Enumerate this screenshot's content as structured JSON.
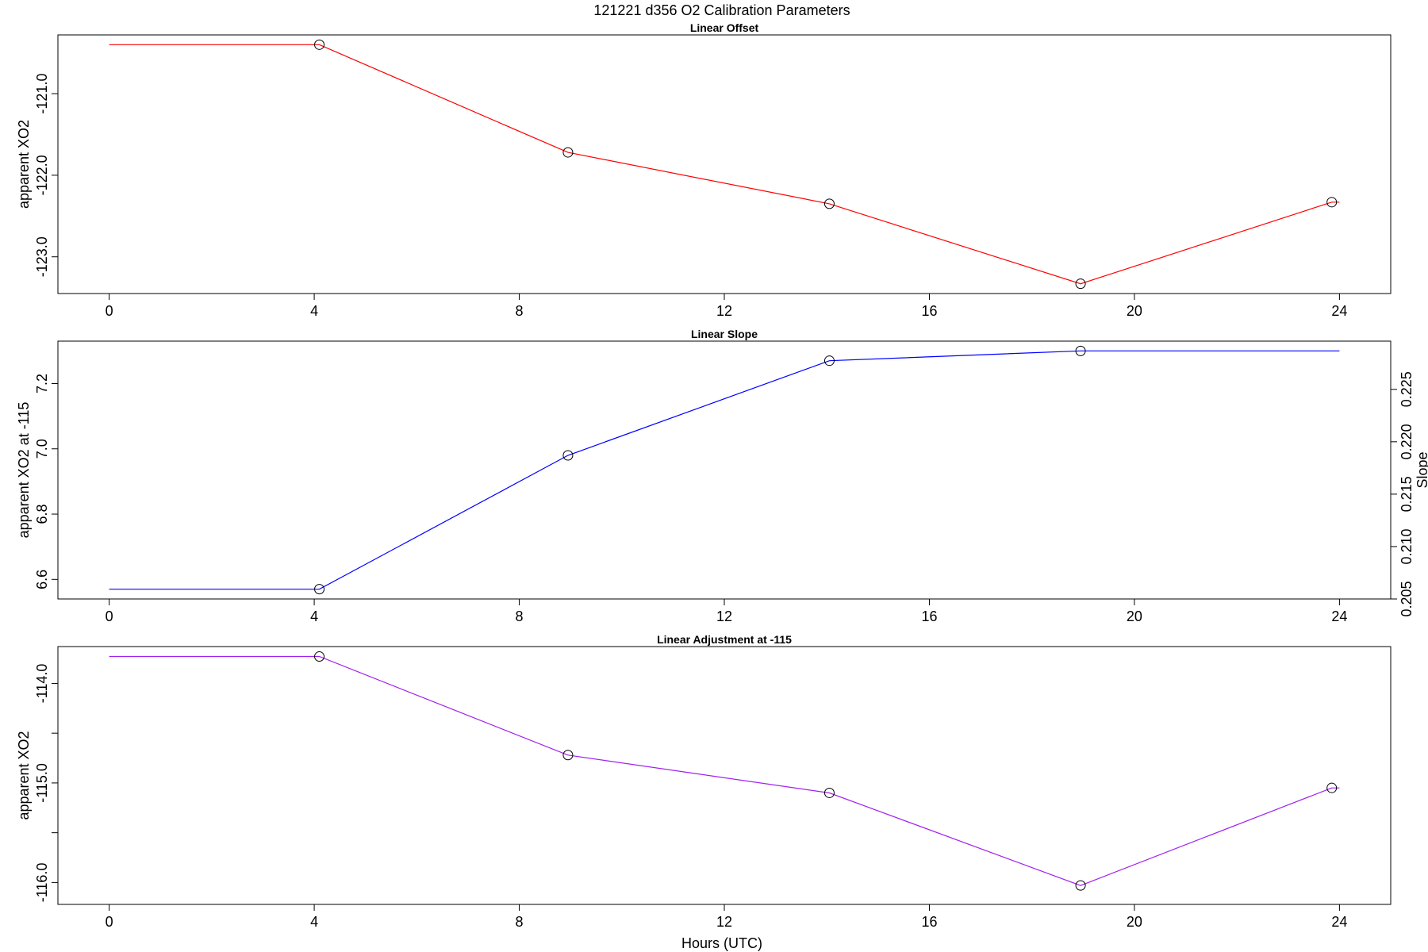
{
  "figure": {
    "title": "121221   d356   O2 Calibration Parameters",
    "xlabel": "Hours (UTC)"
  },
  "chart_data": [
    {
      "type": "line",
      "title": "Linear Offset",
      "xlabel": "",
      "ylabel": "apparent XO2",
      "xlim": [
        -1,
        25
      ],
      "xticks": [
        0,
        4,
        8,
        12,
        16,
        20,
        24
      ],
      "ylim": [
        -123.45,
        -120.28
      ],
      "yticks": [
        -121.0,
        -122.0,
        -123.0
      ],
      "ytick_labels": [
        "-121.0",
        "-122.0",
        "-123.0"
      ],
      "grid": false,
      "color": "#ff0000",
      "line": {
        "x": [
          0,
          4.1,
          8.95,
          14.05,
          18.95,
          23.85,
          24
        ],
        "y": [
          -120.4,
          -120.4,
          -121.72,
          -122.35,
          -123.33,
          -122.33,
          -122.33
        ]
      },
      "points": {
        "x": [
          4.1,
          8.95,
          14.05,
          18.95,
          23.85
        ],
        "y": [
          -120.4,
          -121.72,
          -122.35,
          -123.33,
          -122.33
        ]
      }
    },
    {
      "type": "line",
      "title": "Linear Slope",
      "xlabel": "",
      "ylabel": "apparent XO2 at -115",
      "y2label": "Slope",
      "xlim": [
        -1,
        25
      ],
      "xticks": [
        0,
        4,
        8,
        12,
        16,
        20,
        24
      ],
      "ylim": [
        6.54,
        7.33
      ],
      "yticks": [
        6.6,
        6.8,
        7.0,
        7.2
      ],
      "ytick_labels": [
        "6.6",
        "6.8",
        "7.0",
        "7.2"
      ],
      "y2lim": [
        0.205,
        0.2296
      ],
      "y2ticks": [
        0.205,
        0.21,
        0.215,
        0.22,
        0.225
      ],
      "y2tick_labels": [
        "0.205",
        "0.210",
        "0.215",
        "0.220",
        "0.225"
      ],
      "grid": false,
      "color": "#0000ff",
      "line": {
        "x": [
          0,
          4.1,
          8.95,
          14.05,
          18.95,
          24
        ],
        "y": [
          6.57,
          6.57,
          6.98,
          7.27,
          7.3,
          7.3
        ]
      },
      "points": {
        "x": [
          4.1,
          8.95,
          14.05,
          18.95
        ],
        "y": [
          6.57,
          6.98,
          7.27,
          7.3
        ]
      }
    },
    {
      "type": "line",
      "title": "Linear Adjustment at -115",
      "xlabel": "",
      "ylabel": "apparent XO2",
      "xlim": [
        -1,
        25
      ],
      "xticks": [
        0,
        4,
        8,
        12,
        16,
        20,
        24
      ],
      "ylim": [
        -116.22,
        -113.63
      ],
      "yticks": [
        -114.0,
        -114.5,
        -115.0,
        -115.5,
        -116.0
      ],
      "ytick_labels": [
        "-114.0",
        "",
        "-115.0",
        "",
        "-116.0"
      ],
      "grid": false,
      "color": "#a020f0",
      "line": {
        "x": [
          0,
          4.1,
          8.95,
          14.05,
          18.95,
          23.85,
          24
        ],
        "y": [
          -113.73,
          -113.73,
          -114.72,
          -115.1,
          -116.03,
          -115.05,
          -115.05
        ]
      },
      "points": {
        "x": [
          4.1,
          8.95,
          14.05,
          18.95,
          23.85
        ],
        "y": [
          -113.73,
          -114.72,
          -115.1,
          -116.03,
          -115.05
        ]
      }
    }
  ]
}
